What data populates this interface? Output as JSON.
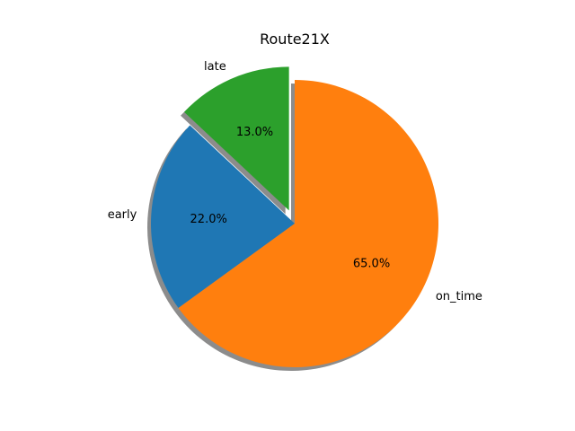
{
  "chart_data": {
    "type": "pie",
    "title": "Route21X",
    "slices": [
      {
        "label": "late",
        "value": 13.0,
        "pct_label": "13.0%",
        "color": "#2ca02c",
        "exploded": true
      },
      {
        "label": "early",
        "value": 22.0,
        "pct_label": "22.0%",
        "color": "#1f77b4",
        "exploded": false
      },
      {
        "label": "on_time",
        "value": 65.0,
        "pct_label": "65.0%",
        "color": "#ff7f0e",
        "exploded": false
      }
    ],
    "start_angle_deg": 90,
    "direction": "counterclockwise",
    "shadow": true,
    "legend": "none"
  }
}
